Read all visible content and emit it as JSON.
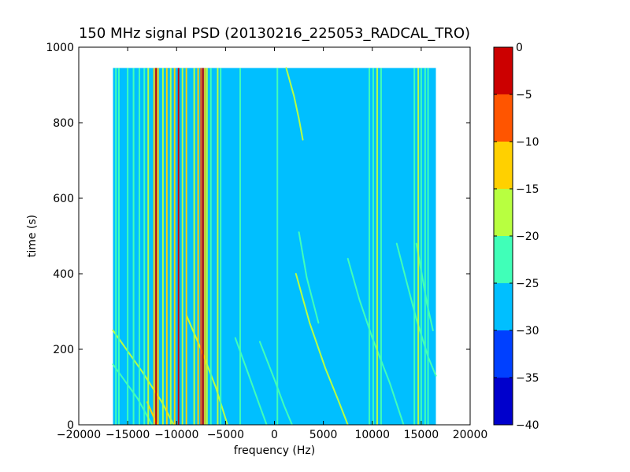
{
  "chart_data": {
    "type": "heatmap",
    "title": "150 MHz signal PSD (20130216_225053_RADCAL_TRO)",
    "xlabel": "frequency (Hz)",
    "ylabel": "time (s)",
    "xlim": [
      -20000,
      20000
    ],
    "ylim": [
      0,
      1000
    ],
    "x_ticks": [
      "−20000",
      "−15000",
      "−10000",
      "−5000",
      "0",
      "5000",
      "10000",
      "15000",
      "20000"
    ],
    "y_ticks": [
      "0",
      "200",
      "400",
      "600",
      "800",
      "1000"
    ],
    "data_extent": {
      "x": [
        -16500,
        16500
      ],
      "y": [
        0,
        945
      ]
    },
    "background_level": -27.5,
    "colorbar": {
      "range": [
        -40,
        0
      ],
      "ticks": [
        "0",
        "−5",
        "−10",
        "−15",
        "−20",
        "−25",
        "−30",
        "−35",
        "−40"
      ],
      "levels": [
        {
          "from": -40,
          "to": -35,
          "color": "#0000cc"
        },
        {
          "from": -35,
          "to": -30,
          "color": "#0040ff"
        },
        {
          "from": -30,
          "to": -25,
          "color": "#00bfff"
        },
        {
          "from": -25,
          "to": -20,
          "color": "#40ffb8"
        },
        {
          "from": -20,
          "to": -15,
          "color": "#b8ff40"
        },
        {
          "from": -15,
          "to": -10,
          "color": "#ffd000"
        },
        {
          "from": -10,
          "to": -5,
          "color": "#ff5500"
        },
        {
          "from": -5,
          "to": 0,
          "color": "#cc0000"
        }
      ]
    },
    "vertical_lines": [
      {
        "x": -16200,
        "level": -22.5
      },
      {
        "x": -15900,
        "level": -22.5
      },
      {
        "x": -15000,
        "level": -22.5
      },
      {
        "x": -14400,
        "level": -22.5
      },
      {
        "x": -13800,
        "level": -22.5
      },
      {
        "x": -13300,
        "level": -22.5
      },
      {
        "x": -12900,
        "level": -17.5
      },
      {
        "x": -12300,
        "level": -12.5
      },
      {
        "x": -12100,
        "level": -2.5
      },
      {
        "x": -11900,
        "level": -12.5
      },
      {
        "x": -11400,
        "level": -17.5
      },
      {
        "x": -11000,
        "level": -12.5
      },
      {
        "x": -10600,
        "level": -17.5
      },
      {
        "x": -10200,
        "level": -12.5
      },
      {
        "x": -9800,
        "level": -2.5
      },
      {
        "x": -9400,
        "level": -17.5
      },
      {
        "x": -9000,
        "level": -12.5
      },
      {
        "x": -8200,
        "level": -17.5
      },
      {
        "x": -7800,
        "level": -12.5
      },
      {
        "x": -7500,
        "level": -7.5
      },
      {
        "x": -7300,
        "level": -2.5
      },
      {
        "x": -7100,
        "level": -12.5
      },
      {
        "x": -6900,
        "level": -17.5
      },
      {
        "x": -6500,
        "level": -22.5
      },
      {
        "x": -5800,
        "level": -17.5
      },
      {
        "x": -5500,
        "level": -22.5
      },
      {
        "x": -3500,
        "level": -22.5
      },
      {
        "x": 300,
        "level": -22.5
      },
      {
        "x": 9700,
        "level": -22.5
      },
      {
        "x": 10100,
        "level": -22.5
      },
      {
        "x": 10500,
        "level": -17.5
      },
      {
        "x": 10900,
        "level": -22.5
      },
      {
        "x": 14300,
        "level": -22.5
      },
      {
        "x": 14700,
        "level": -17.5
      },
      {
        "x": 15000,
        "level": -22.5
      },
      {
        "x": 15400,
        "level": -22.5
      },
      {
        "x": 15700,
        "level": -22.5
      }
    ],
    "drift_tracks": [
      {
        "points": [
          [
            -16500,
            250
          ],
          [
            -13500,
            140
          ],
          [
            -11500,
            60
          ],
          [
            -10300,
            0
          ]
        ],
        "level": -17.5
      },
      {
        "points": [
          [
            -16500,
            160
          ],
          [
            -14000,
            70
          ],
          [
            -12500,
            0
          ]
        ],
        "level": -22.5
      },
      {
        "points": [
          [
            -9000,
            290
          ],
          [
            -7500,
            200
          ],
          [
            -6000,
            100
          ],
          [
            -4800,
            0
          ]
        ],
        "level": -17.5
      },
      {
        "points": [
          [
            -4000,
            230
          ],
          [
            -2600,
            130
          ],
          [
            -1500,
            50
          ],
          [
            -800,
            0
          ]
        ],
        "level": -22.5
      },
      {
        "points": [
          [
            -1500,
            220
          ],
          [
            0,
            120
          ],
          [
            1000,
            50
          ],
          [
            1800,
            0
          ]
        ],
        "level": -22.5
      },
      {
        "points": [
          [
            2200,
            400
          ],
          [
            3600,
            270
          ],
          [
            5200,
            150
          ],
          [
            6600,
            60
          ],
          [
            7500,
            0
          ]
        ],
        "level": -17.5
      },
      {
        "points": [
          [
            1200,
            945
          ],
          [
            2000,
            870
          ],
          [
            2500,
            810
          ],
          [
            2900,
            755
          ]
        ],
        "level": -17.5
      },
      {
        "points": [
          [
            2500,
            510
          ],
          [
            3300,
            390
          ],
          [
            4500,
            270
          ]
        ],
        "level": -22.5
      },
      {
        "points": [
          [
            7500,
            440
          ],
          [
            8700,
            330
          ],
          [
            10000,
            230
          ],
          [
            11800,
            110
          ],
          [
            13200,
            0
          ]
        ],
        "level": -22.5
      },
      {
        "points": [
          [
            12500,
            480
          ],
          [
            13500,
            380
          ],
          [
            14500,
            280
          ],
          [
            15700,
            180
          ],
          [
            16500,
            130
          ]
        ],
        "level": -22.5
      },
      {
        "points": [
          [
            14500,
            480
          ],
          [
            15600,
            320
          ],
          [
            16200,
            250
          ]
        ],
        "level": -22.5
      },
      {
        "points": [
          [
            -13000,
            60
          ],
          [
            -12000,
            0
          ]
        ],
        "level": -12.5
      }
    ]
  }
}
